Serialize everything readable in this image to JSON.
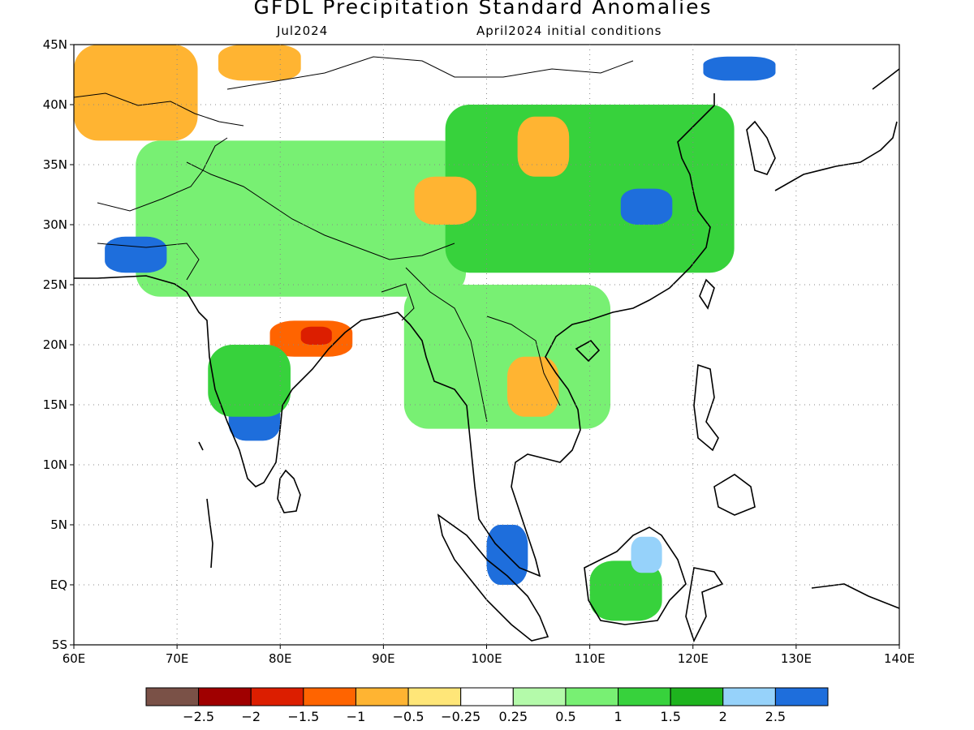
{
  "title": "GFDL Precipitation Standard Anomalies",
  "subtitle_left": "Jul2024",
  "subtitle_right": "April2024 initial conditions",
  "lon_ticks": [
    "60E",
    "70E",
    "80E",
    "90E",
    "100E",
    "110E",
    "120E",
    "130E",
    "140E"
  ],
  "lat_ticks": [
    "45N",
    "40N",
    "35N",
    "30N",
    "25N",
    "20N",
    "15N",
    "10N",
    "5N",
    "EQ",
    "5S"
  ],
  "lon_range": [
    60,
    140
  ],
  "lat_range": [
    -5,
    45
  ],
  "colorbar": {
    "colors": [
      "#7a5147",
      "#a00000",
      "#dc1e00",
      "#ff6400",
      "#ffb432",
      "#ffe678",
      "#ffffff",
      "#b4faaa",
      "#78f073",
      "#37d23c",
      "#1eb41e",
      "#96d2fa",
      "#1e6edc"
    ],
    "labels": [
      "−2.5",
      "−2",
      "−1.5",
      "−1",
      "−0.5",
      "−0.25",
      "0.25",
      "0.5",
      "1",
      "1.5",
      "2",
      "2.5"
    ]
  },
  "anomaly_regions": [
    {
      "level": "-0.5",
      "color": "#ffb432",
      "lon": [
        60,
        72
      ],
      "lat": [
        37,
        45
      ]
    },
    {
      "level": "-0.5",
      "color": "#ffb432",
      "lon": [
        74,
        82
      ],
      "lat": [
        42,
        45
      ]
    },
    {
      "level": "1",
      "color": "#78f073",
      "lon": [
        66,
        98
      ],
      "lat": [
        24,
        37
      ]
    },
    {
      "level": "1.5",
      "color": "#37d23c",
      "lon": [
        96,
        124
      ],
      "lat": [
        26,
        40
      ]
    },
    {
      "level": "2.5",
      "color": "#1e6edc",
      "lon": [
        63,
        69
      ],
      "lat": [
        26,
        29
      ]
    },
    {
      "level": "2.5",
      "color": "#1e6edc",
      "lon": [
        113,
        118
      ],
      "lat": [
        30,
        33
      ]
    },
    {
      "level": "2.5",
      "color": "#1e6edc",
      "lon": [
        121,
        128
      ],
      "lat": [
        42,
        44
      ]
    },
    {
      "level": "-1",
      "color": "#ff6400",
      "lon": [
        79,
        87
      ],
      "lat": [
        19,
        22
      ]
    },
    {
      "level": "-1.5",
      "color": "#dc1e00",
      "lon": [
        82,
        85
      ],
      "lat": [
        20,
        21.5
      ]
    },
    {
      "level": "-0.5",
      "color": "#ffb432",
      "lon": [
        93,
        99
      ],
      "lat": [
        30,
        34
      ]
    },
    {
      "level": "-0.5",
      "color": "#ffb432",
      "lon": [
        103,
        108
      ],
      "lat": [
        34,
        39
      ]
    },
    {
      "level": "2.5",
      "color": "#1e6edc",
      "lon": [
        75,
        80
      ],
      "lat": [
        12,
        16
      ]
    },
    {
      "level": "1.5",
      "color": "#37d23c",
      "lon": [
        73,
        81
      ],
      "lat": [
        14,
        20
      ]
    },
    {
      "level": "1",
      "color": "#78f073",
      "lon": [
        92,
        112
      ],
      "lat": [
        13,
        25
      ]
    },
    {
      "level": "-0.5",
      "color": "#ffb432",
      "lon": [
        102,
        107
      ],
      "lat": [
        14,
        19
      ]
    },
    {
      "level": "2.5",
      "color": "#1e6edc",
      "lon": [
        100,
        104
      ],
      "lat": [
        0,
        5
      ]
    },
    {
      "level": "1.5",
      "color": "#37d23c",
      "lon": [
        110,
        117
      ],
      "lat": [
        -3,
        2
      ]
    },
    {
      "level": "2",
      "color": "#96d2fa",
      "lon": [
        114,
        117
      ],
      "lat": [
        1,
        4
      ]
    }
  ]
}
